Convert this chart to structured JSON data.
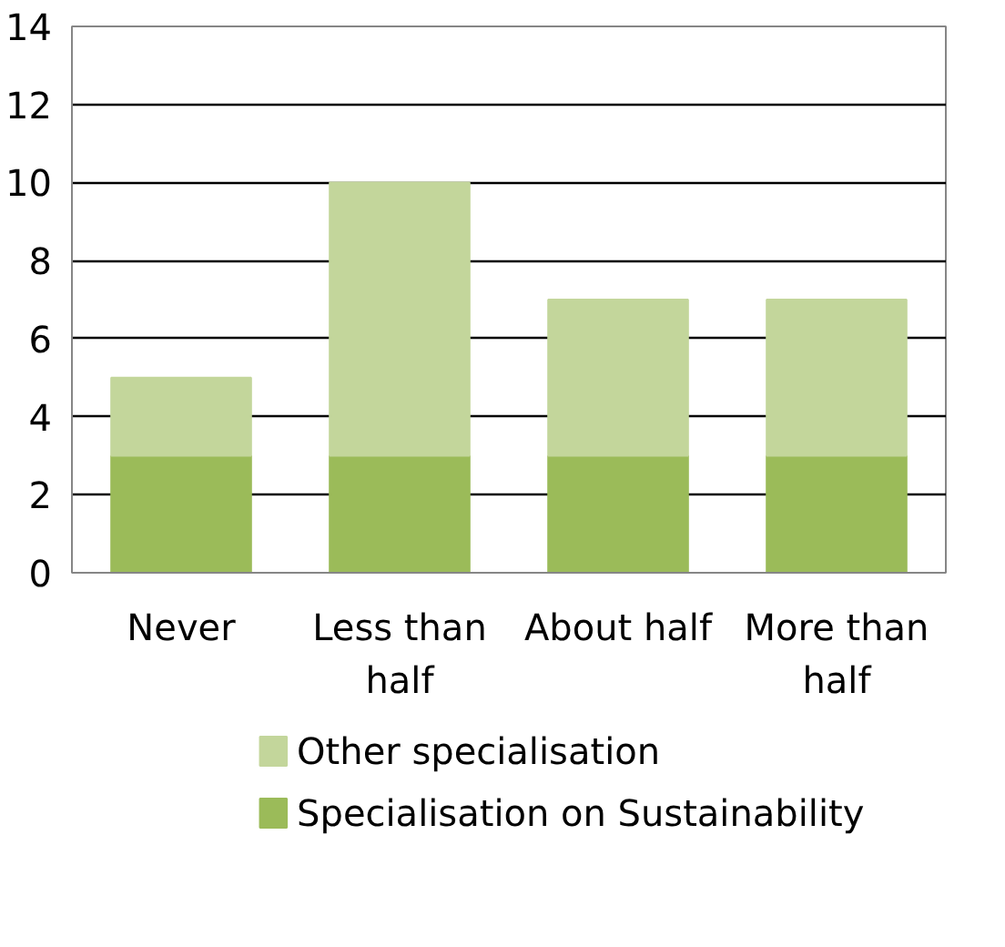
{
  "chart_data": {
    "type": "bar",
    "stacked": true,
    "categories": [
      "Never",
      "Less than half",
      "About half",
      "More than half"
    ],
    "series": [
      {
        "name": "Specialisation on Sustainability",
        "color": "#9bbb59",
        "values": [
          3,
          3,
          3,
          3
        ]
      },
      {
        "name": "Other specialisation",
        "color": "#c3d69b",
        "values": [
          2,
          7,
          4,
          4
        ]
      }
    ],
    "ylim": [
      0,
      14
    ],
    "yticks": [
      0,
      2,
      4,
      6,
      8,
      10,
      12,
      14
    ],
    "grid": "y",
    "legend": "bottom"
  }
}
